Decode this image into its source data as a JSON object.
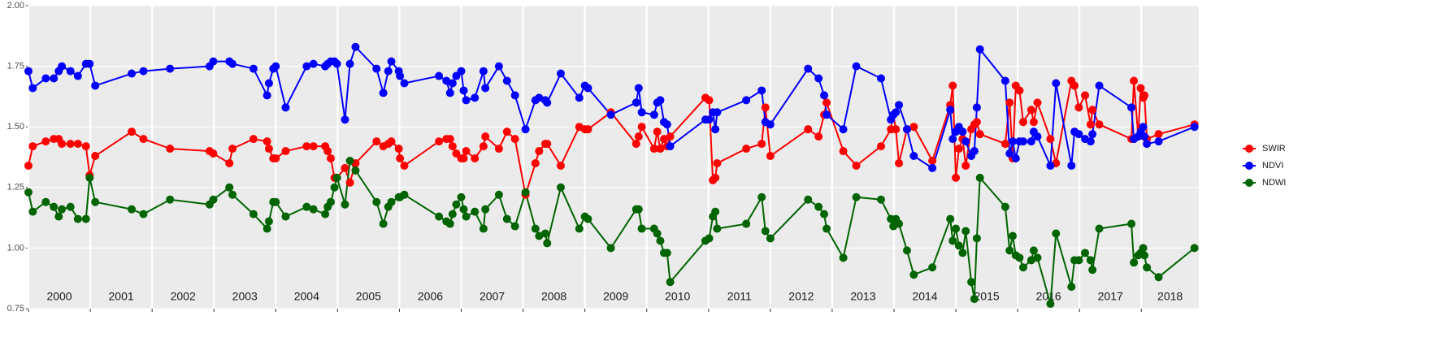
{
  "chart_data": {
    "type": "line",
    "x": [
      2000.0,
      2000.07,
      2000.28,
      2000.41,
      2000.49,
      2000.54,
      2000.68,
      2000.8,
      2000.93,
      2000.99,
      2001.08,
      2001.67,
      2001.86,
      2002.29,
      2002.93,
      2002.99,
      2003.25,
      2003.3,
      2003.64,
      2003.86,
      2003.89,
      2003.96,
      2004.0,
      2004.16,
      2004.5,
      2004.61,
      2004.8,
      2004.84,
      2004.89,
      2004.95,
      2004.99,
      2005.12,
      2005.2,
      2005.29,
      2005.63,
      2005.74,
      2005.82,
      2005.87,
      2005.99,
      2006.01,
      2006.08,
      2006.64,
      2006.76,
      2006.82,
      2006.86,
      2006.92,
      2007.0,
      2007.04,
      2007.08,
      2007.22,
      2007.36,
      2007.39,
      2007.61,
      2007.74,
      2007.87,
      2008.04,
      2008.2,
      2008.26,
      2008.36,
      2008.39,
      2008.61,
      2008.91,
      2009.0,
      2009.05,
      2009.42,
      2009.83,
      2009.87,
      2009.92,
      2010.12,
      2010.17,
      2010.22,
      2010.28,
      2010.33,
      2010.38,
      2010.95,
      2011.01,
      2011.07,
      2011.11,
      2011.14,
      2011.61,
      2011.86,
      2011.92,
      2012.0,
      2012.61,
      2012.78,
      2012.87,
      2012.91,
      2013.18,
      2013.39,
      2013.79,
      2013.95,
      2013.99,
      2014.03,
      2014.08,
      2014.21,
      2014.32,
      2014.62,
      2014.91,
      2014.95,
      2015.0,
      2015.05,
      2015.11,
      2015.16,
      2015.25,
      2015.3,
      2015.34,
      2015.39,
      2015.8,
      2015.87,
      2015.92,
      2015.97,
      2016.03,
      2016.09,
      2016.22,
      2016.26,
      2016.32,
      2016.53,
      2016.62,
      2016.87,
      2016.92,
      2016.99,
      2017.09,
      2017.18,
      2017.21,
      2017.32,
      2017.84,
      2017.88,
      2017.95,
      2017.99,
      2018.03,
      2018.05,
      2018.09,
      2018.28,
      2018.86
    ],
    "series": [
      {
        "name": "SWIR",
        "color": "#ff0000",
        "values": [
          1.34,
          1.42,
          1.44,
          1.45,
          1.45,
          1.43,
          1.43,
          1.43,
          1.42,
          1.3,
          1.38,
          1.48,
          1.45,
          1.41,
          1.4,
          1.39,
          1.35,
          1.41,
          1.45,
          1.44,
          1.41,
          1.37,
          1.37,
          1.4,
          1.42,
          1.42,
          1.42,
          1.4,
          1.37,
          1.29,
          1.29,
          1.33,
          1.27,
          1.35,
          1.44,
          1.42,
          1.43,
          1.44,
          1.41,
          1.37,
          1.34,
          1.44,
          1.45,
          1.45,
          1.42,
          1.39,
          1.37,
          1.37,
          1.4,
          1.37,
          1.42,
          1.46,
          1.41,
          1.48,
          1.45,
          1.22,
          1.35,
          1.4,
          1.43,
          1.43,
          1.34,
          1.5,
          1.49,
          1.49,
          1.56,
          1.43,
          1.46,
          1.5,
          1.41,
          1.48,
          1.41,
          1.45,
          1.42,
          1.46,
          1.62,
          1.61,
          1.28,
          1.29,
          1.35,
          1.41,
          1.43,
          1.58,
          1.38,
          1.49,
          1.46,
          1.55,
          1.6,
          1.4,
          1.34,
          1.42,
          1.49,
          1.55,
          1.49,
          1.35,
          1.49,
          1.5,
          1.36,
          1.59,
          1.67,
          1.29,
          1.41,
          1.45,
          1.34,
          1.49,
          1.51,
          1.52,
          1.47,
          1.43,
          1.6,
          1.37,
          1.67,
          1.65,
          1.52,
          1.57,
          1.52,
          1.6,
          1.45,
          1.35,
          1.69,
          1.67,
          1.58,
          1.63,
          1.51,
          1.57,
          1.51,
          1.45,
          1.69,
          1.46,
          1.66,
          1.62,
          1.63,
          1.45,
          1.47,
          1.51
        ]
      },
      {
        "name": "NDVI",
        "color": "#0000ff",
        "values": [
          1.73,
          1.66,
          1.7,
          1.7,
          1.73,
          1.75,
          1.73,
          1.71,
          1.76,
          1.76,
          1.67,
          1.72,
          1.73,
          1.74,
          1.75,
          1.77,
          1.77,
          1.76,
          1.74,
          1.63,
          1.68,
          1.74,
          1.75,
          1.58,
          1.75,
          1.76,
          1.75,
          1.76,
          1.77,
          1.77,
          1.76,
          1.53,
          1.76,
          1.83,
          1.74,
          1.64,
          1.73,
          1.77,
          1.73,
          1.71,
          1.68,
          1.71,
          1.69,
          1.64,
          1.68,
          1.71,
          1.73,
          1.65,
          1.61,
          1.62,
          1.73,
          1.66,
          1.75,
          1.69,
          1.63,
          1.49,
          1.61,
          1.62,
          1.61,
          1.6,
          1.72,
          1.62,
          1.67,
          1.66,
          1.55,
          1.6,
          1.66,
          1.56,
          1.55,
          1.6,
          1.61,
          1.52,
          1.51,
          1.42,
          1.53,
          1.53,
          1.56,
          1.49,
          1.56,
          1.61,
          1.65,
          1.52,
          1.51,
          1.74,
          1.7,
          1.63,
          1.55,
          1.49,
          1.75,
          1.7,
          1.53,
          1.55,
          1.56,
          1.59,
          1.49,
          1.38,
          1.33,
          1.57,
          1.45,
          1.48,
          1.5,
          1.48,
          1.44,
          1.38,
          1.4,
          1.58,
          1.82,
          1.69,
          1.39,
          1.44,
          1.37,
          1.44,
          1.44,
          1.44,
          1.48,
          1.46,
          1.34,
          1.68,
          1.34,
          1.48,
          1.47,
          1.45,
          1.44,
          1.47,
          1.67,
          1.58,
          1.45,
          1.46,
          1.48,
          1.5,
          1.46,
          1.43,
          1.44,
          1.5
        ]
      },
      {
        "name": "NDWI",
        "color": "#006400",
        "values": [
          1.23,
          1.15,
          1.19,
          1.17,
          1.13,
          1.16,
          1.17,
          1.12,
          1.12,
          1.29,
          1.19,
          1.16,
          1.14,
          1.2,
          1.18,
          1.2,
          1.25,
          1.22,
          1.14,
          1.08,
          1.11,
          1.19,
          1.19,
          1.13,
          1.17,
          1.16,
          1.14,
          1.17,
          1.19,
          1.25,
          1.29,
          1.18,
          1.36,
          1.32,
          1.19,
          1.1,
          1.17,
          1.19,
          1.21,
          1.21,
          1.22,
          1.13,
          1.11,
          1.1,
          1.14,
          1.18,
          1.21,
          1.16,
          1.13,
          1.15,
          1.08,
          1.16,
          1.22,
          1.12,
          1.09,
          1.23,
          1.08,
          1.05,
          1.06,
          1.02,
          1.25,
          1.08,
          1.13,
          1.12,
          1.0,
          1.16,
          1.16,
          1.08,
          1.08,
          1.06,
          1.03,
          0.98,
          0.98,
          0.86,
          1.03,
          1.04,
          1.13,
          1.15,
          1.08,
          1.1,
          1.21,
          1.07,
          1.04,
          1.2,
          1.17,
          1.14,
          1.08,
          0.96,
          1.21,
          1.2,
          1.12,
          1.09,
          1.12,
          1.1,
          0.99,
          0.89,
          0.92,
          1.12,
          1.03,
          1.08,
          1.01,
          0.98,
          1.07,
          0.86,
          0.79,
          1.04,
          1.29,
          1.17,
          0.99,
          1.05,
          0.97,
          0.96,
          0.92,
          0.95,
          0.99,
          0.96,
          0.77,
          1.06,
          0.84,
          0.95,
          0.95,
          0.98,
          0.95,
          0.91,
          1.08,
          1.1,
          0.94,
          0.97,
          0.98,
          1.0,
          0.97,
          0.92,
          0.88,
          1.0
        ]
      }
    ],
    "xlim": [
      2000,
      2018.93
    ],
    "xticks": [
      2000,
      2001,
      2002,
      2003,
      2004,
      2005,
      2006,
      2007,
      2008,
      2009,
      2010,
      2011,
      2012,
      2013,
      2014,
      2015,
      2016,
      2017,
      2018
    ],
    "ylim": [
      0.75,
      2.0
    ],
    "yticks": [
      0.75,
      {
        "value": 1,
        "label": "1.00"
      },
      1.25,
      {
        "value": 1.5,
        "label": "1.50"
      },
      1.75,
      {
        "value": 2,
        "label": "2.00"
      }
    ],
    "grid": true,
    "legend": "right"
  }
}
